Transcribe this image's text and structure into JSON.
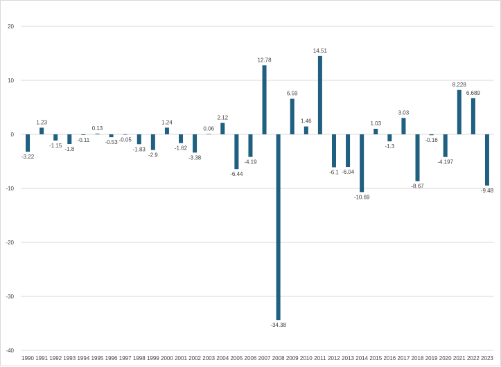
{
  "chart_data": {
    "type": "bar",
    "categories": [
      "1990",
      "1991",
      "1992",
      "1993",
      "1994",
      "1995",
      "1996",
      "1997",
      "1998",
      "1999",
      "2000",
      "2001",
      "2002",
      "2003",
      "2004",
      "2005",
      "2006",
      "2007",
      "2008",
      "2009",
      "2010",
      "2011",
      "2012",
      "2013",
      "2014",
      "2015",
      "2016",
      "2017",
      "2018",
      "2019",
      "2020",
      "2021",
      "2022",
      "2023"
    ],
    "values": [
      -3.22,
      1.23,
      -1.15,
      -1.8,
      -0.11,
      0.13,
      -0.53,
      -0.05,
      -1.83,
      -2.9,
      1.24,
      -1.62,
      -3.38,
      0.06,
      2.12,
      -6.44,
      -4.19,
      12.78,
      -34.38,
      6.59,
      1.46,
      14.51,
      -6.1,
      -6.04,
      -10.69,
      1.03,
      -1.3,
      3.03,
      -8.67,
      -0.16,
      -4.197,
      8.228,
      6.689,
      -9.48
    ],
    "data_labels": [
      "-3.22",
      "1.23",
      "-1.15",
      "-1.8",
      "-0.11",
      "0.13",
      "-0.53",
      "-0.05",
      "-1.83",
      "-2.9",
      "1.24",
      "-1.62",
      "-3.38",
      "0.06",
      "2.12",
      "-6.44",
      "-4.19",
      "12.78",
      "-34.38",
      "6.59",
      "1.46",
      "14.51",
      "-6.1",
      "-6.04",
      "-10.69",
      "1.03",
      "-1.3",
      "3.03",
      "-8.67",
      "-0.16",
      "-4.197",
      "8.228",
      "6.689",
      "-9.48"
    ],
    "y_ticks": [
      "20",
      "10",
      "0",
      "-10",
      "-20",
      "-30",
      "-40"
    ],
    "ylim": [
      -40,
      20
    ],
    "grid": true,
    "legend": "none",
    "title": "",
    "xlabel": "",
    "ylabel": "",
    "bar_color": "#1f5f7f",
    "grid_color": "#d9d9d9"
  }
}
